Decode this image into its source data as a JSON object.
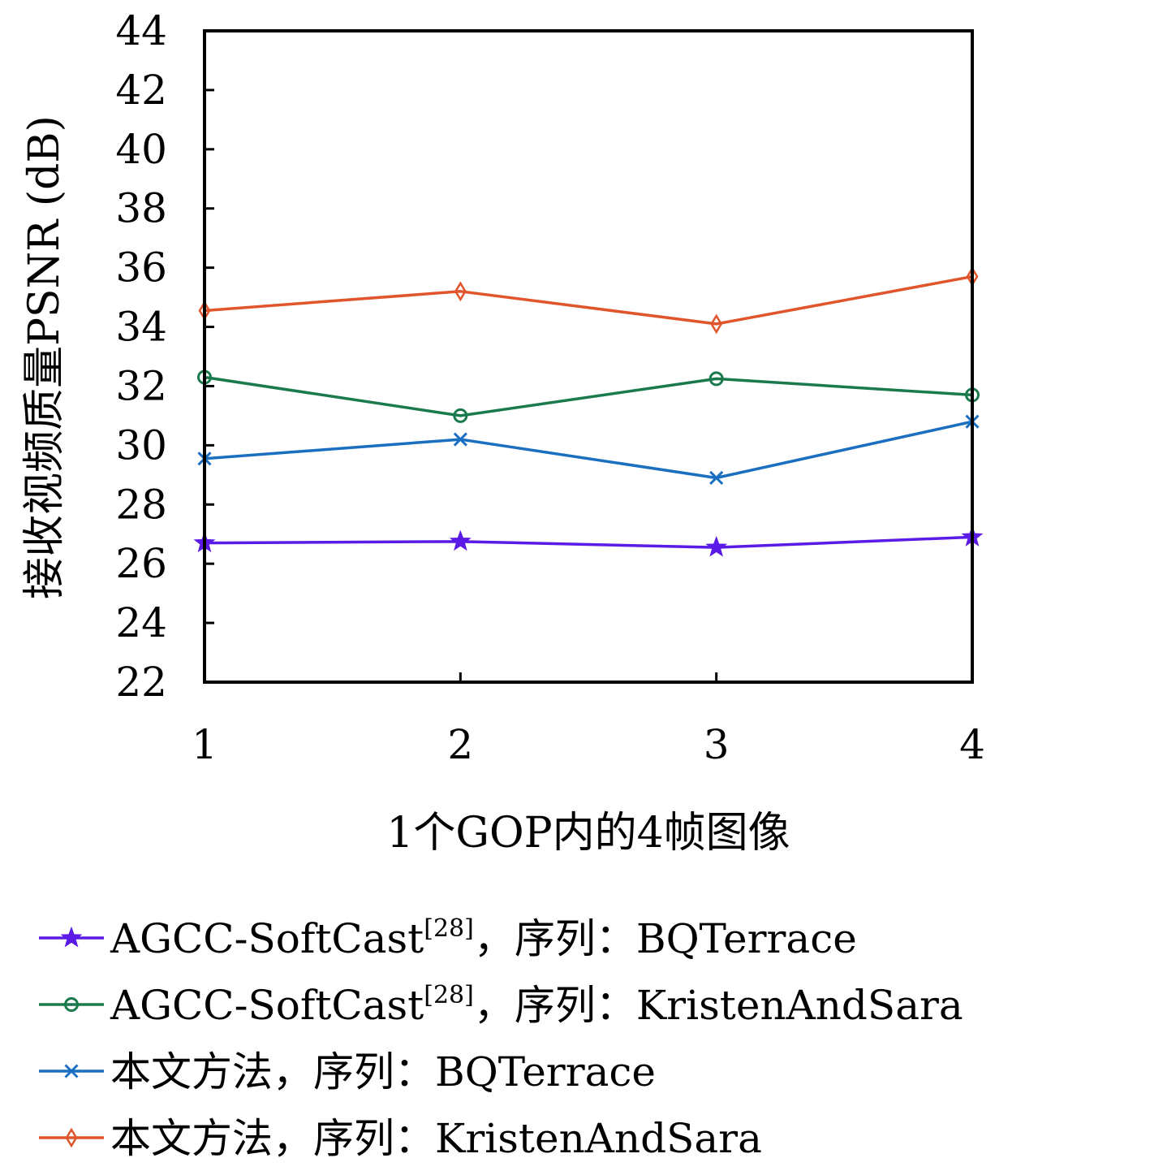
{
  "chart_data": {
    "type": "line",
    "xlabel": "1个GOP内的4帧图像",
    "ylabel": "接收视频质量PSNR (dB)",
    "x": [
      1,
      2,
      3,
      4
    ],
    "xticks": [
      "1",
      "2",
      "3",
      "4"
    ],
    "xlim": [
      1,
      4
    ],
    "ylim": [
      22,
      44
    ],
    "yticks": [
      "22",
      "24",
      "26",
      "28",
      "30",
      "32",
      "34",
      "36",
      "38",
      "40",
      "42",
      "44"
    ],
    "grid": false,
    "legend_position": "bottom",
    "series": [
      {
        "name": "AGCC-SoftCast[28]，序列：BQTerrace",
        "legend_main": "AGCC-SoftCast",
        "legend_sup": "[28]",
        "legend_rest": "，序列：BQTerrace",
        "marker": "star",
        "color": "#5b1be6",
        "values": [
          26.7,
          26.75,
          26.55,
          26.9
        ]
      },
      {
        "name": "AGCC-SoftCast[28]，序列：KristenAndSara",
        "legend_main": "AGCC-SoftCast",
        "legend_sup": "[28]",
        "legend_rest": "，序列：KristenAndSara",
        "marker": "circle",
        "color": "#1a7a4c",
        "values": [
          32.3,
          31.0,
          32.25,
          31.7
        ]
      },
      {
        "name": "本文方法，序列：BQTerrace",
        "legend_main": "本文方法，序列：BQTerrace",
        "legend_sup": "",
        "legend_rest": "",
        "marker": "x",
        "color": "#1a6fc0",
        "values": [
          29.55,
          30.2,
          28.9,
          30.8
        ]
      },
      {
        "name": "本文方法，序列：KristenAndSara",
        "legend_main": "本文方法，序列：KristenAndSara",
        "legend_sup": "",
        "legend_rest": "",
        "marker": "diamond",
        "color": "#e0552b",
        "values": [
          34.55,
          35.2,
          34.1,
          35.7
        ]
      }
    ]
  }
}
